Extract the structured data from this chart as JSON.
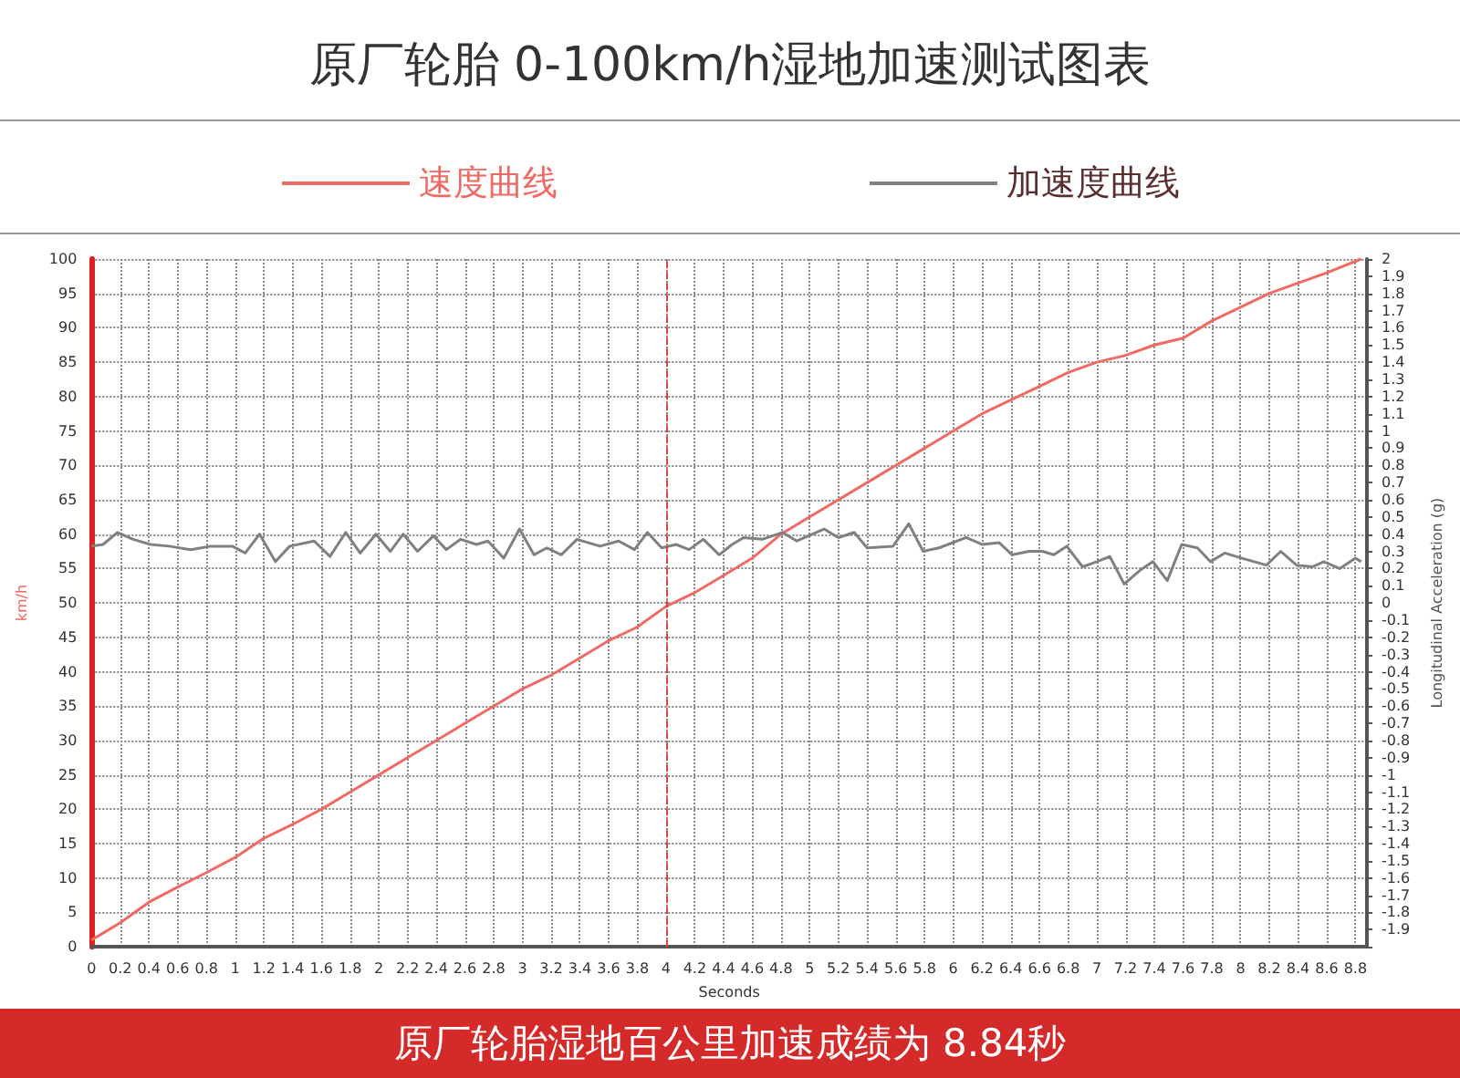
{
  "chart_data": {
    "type": "line",
    "title": "原厂轮胎 0-100km/h湿地加速测试图表",
    "xlabel": "Seconds",
    "ylabel": "km/h",
    "y2label": "Longitudinal Acceleration (g)",
    "xlim": [
      0,
      8.88
    ],
    "xticks": [
      0,
      0.2,
      0.4,
      0.6,
      0.8,
      1,
      1.2,
      1.4,
      1.6,
      1.8,
      2,
      2.2,
      2.4,
      2.6,
      2.8,
      3,
      3.2,
      3.4,
      3.6,
      3.8,
      4,
      4.2,
      4.4,
      4.6,
      4.8,
      5,
      5.2,
      5.4,
      5.6,
      5.8,
      6,
      6.2,
      6.4,
      6.6,
      6.8,
      7,
      7.2,
      7.4,
      7.6,
      7.8,
      8,
      8.2,
      8.4,
      8.6,
      8.8
    ],
    "ylim": [
      0,
      100
    ],
    "yticks": [
      0,
      5,
      10,
      15,
      20,
      25,
      30,
      35,
      40,
      45,
      50,
      55,
      60,
      65,
      70,
      75,
      80,
      85,
      90,
      95,
      100
    ],
    "y2lim": [
      -2,
      2
    ],
    "y2ticks": [
      -1.9,
      -1.8,
      -1.7,
      -1.6,
      -1.5,
      -1.4,
      -1.3,
      -1.2,
      -1.1,
      -1,
      -0.9,
      -0.8,
      -0.7,
      -0.6,
      -0.5,
      -0.4,
      -0.3,
      -0.2,
      -0.1,
      0,
      0.1,
      0.2,
      0.3,
      0.4,
      0.5,
      0.6,
      0.7,
      0.8,
      0.9,
      1,
      1.1,
      1.2,
      1.3,
      1.4,
      1.5,
      1.6,
      1.7,
      1.8,
      1.9,
      2
    ],
    "grid": true,
    "legend": "top",
    "series": [
      {
        "name": "速度曲线",
        "color": "#f06a64",
        "x": [
          0,
          0.2,
          0.4,
          0.6,
          0.8,
          1,
          1.2,
          1.4,
          1.6,
          1.8,
          2,
          2.2,
          2.4,
          2.6,
          2.8,
          3,
          3.2,
          3.4,
          3.6,
          3.8,
          4,
          4.2,
          4.4,
          4.6,
          4.8,
          5,
          5.2,
          5.4,
          5.6,
          5.8,
          6,
          6.2,
          6.4,
          6.6,
          6.8,
          7,
          7.2,
          7.4,
          7.6,
          7.8,
          8,
          8.2,
          8.4,
          8.6,
          8.84
        ],
        "values": [
          1,
          3.5,
          6.5,
          8.7,
          10.8,
          13,
          15.8,
          17.8,
          20,
          22.5,
          25,
          27.5,
          30,
          32.5,
          35,
          37.5,
          39.5,
          42,
          44.5,
          46.5,
          49.5,
          51.5,
          54,
          56.5,
          60,
          62.5,
          65,
          67.5,
          70,
          72.5,
          75,
          77.5,
          79.5,
          81.5,
          83.5,
          85,
          86,
          87.5,
          88.5,
          91,
          93,
          95,
          96.5,
          98,
          100
        ]
      },
      {
        "name": "加速度曲线",
        "color": "#808080",
        "axis": "y2",
        "x": [
          0,
          0.08,
          0.18,
          0.29,
          0.41,
          0.54,
          0.69,
          0.83,
          0.98,
          1.07,
          1.17,
          1.28,
          1.38,
          1.55,
          1.66,
          1.77,
          1.87,
          1.98,
          2.08,
          2.17,
          2.27,
          2.38,
          2.47,
          2.57,
          2.68,
          2.76,
          2.87,
          2.98,
          3.08,
          3.17,
          3.27,
          3.38,
          3.54,
          3.67,
          3.78,
          3.87,
          3.97,
          4.07,
          4.16,
          4.26,
          4.37,
          4.46,
          4.54,
          4.67,
          4.81,
          4.91,
          5.1,
          5.2,
          5.31,
          5.4,
          5.58,
          5.69,
          5.79,
          5.9,
          6.09,
          6.2,
          6.32,
          6.41,
          6.53,
          6.62,
          6.7,
          6.79,
          6.9,
          7,
          7.09,
          7.19,
          7.3,
          7.39,
          7.49,
          7.59,
          7.7,
          7.79,
          7.89,
          8.01,
          8.18,
          8.28,
          8.39,
          8.5,
          8.58,
          8.69,
          8.8,
          8.84
        ],
        "values": [
          0.33,
          0.34,
          0.41,
          0.37,
          0.34,
          0.33,
          0.31,
          0.33,
          0.33,
          0.29,
          0.4,
          0.24,
          0.33,
          0.36,
          0.27,
          0.41,
          0.29,
          0.4,
          0.3,
          0.4,
          0.3,
          0.39,
          0.31,
          0.37,
          0.34,
          0.36,
          0.26,
          0.43,
          0.28,
          0.32,
          0.28,
          0.37,
          0.33,
          0.36,
          0.31,
          0.41,
          0.32,
          0.34,
          0.31,
          0.37,
          0.28,
          0.34,
          0.38,
          0.37,
          0.41,
          0.36,
          0.43,
          0.38,
          0.41,
          0.32,
          0.33,
          0.46,
          0.3,
          0.32,
          0.38,
          0.34,
          0.35,
          0.28,
          0.3,
          0.3,
          0.28,
          0.33,
          0.21,
          0.24,
          0.27,
          0.11,
          0.19,
          0.24,
          0.13,
          0.34,
          0.32,
          0.24,
          0.29,
          0.26,
          0.22,
          0.3,
          0.22,
          0.21,
          0.24,
          0.2,
          0.26,
          0.24
        ]
      }
    ],
    "ref_lines": [
      {
        "axis": "x",
        "value": 4,
        "color": "#e04040",
        "line_style": "dashed"
      }
    ],
    "annotations": [
      "原厂轮胎湿地百公里加速成绩为 8.84秒"
    ]
  }
}
